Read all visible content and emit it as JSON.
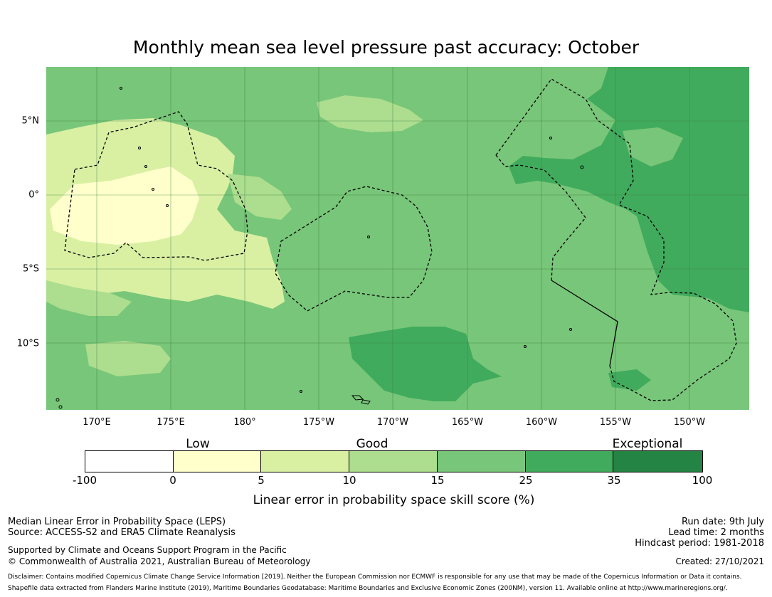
{
  "title": "Monthly mean sea level pressure past accuracy: October",
  "colors": {
    "c1": "#ffffcc",
    "c2": "#d9f0a3",
    "c3": "#addd8e",
    "c4": "#78c679",
    "c5": "#41ab5d",
    "c6": "#238443",
    "c0": "#ffffff"
  },
  "map": {
    "lon_labels": [
      "170°E",
      "175°E",
      "180°",
      "175°W",
      "170°W",
      "165°W",
      "160°W",
      "155°W",
      "150°W"
    ],
    "lat_labels": [
      "5°N",
      "0°",
      "5°S",
      "10°S"
    ]
  },
  "colorbar": {
    "categories": [
      "Low",
      "Good",
      "Exceptional"
    ],
    "ticks": [
      "-100",
      "0",
      "5",
      "10",
      "15",
      "25",
      "35",
      "100"
    ],
    "label": "Linear error in probability space skill score (%)"
  },
  "footer": {
    "left1": "Median Linear Error in Probability Space (LEPS)",
    "left2": "Source: ACCESS-S2 and ERA5 Climate Reanalysis",
    "left3": "Supported by Climate and Oceans Support Program in the Pacific",
    "left4": "© Commonwealth of Australia 2021, Australian Bureau of Meteorology",
    "right1": "Run date: 9th July",
    "right2": "Lead time: 2 months",
    "right3": "Hindcast period: 1981-2018",
    "created": "Created: 27/10/2021",
    "disclaimer1": "Disclaimer: Contains modified Copernicus Climate Change Service Information [2019]. Neither the European Commission nor ECMWF is responsible for any use that may be made of the Copernicus Information or Data it contains.",
    "disclaimer2": "Shapefile data extracted from Flanders Marine Institute (2019), Maritime Boundaries Geodatabase: Maritime Boundaries and Exclusive Economic Zones (200NM), version 11. Available online at http://www.marineregions.org/."
  }
}
